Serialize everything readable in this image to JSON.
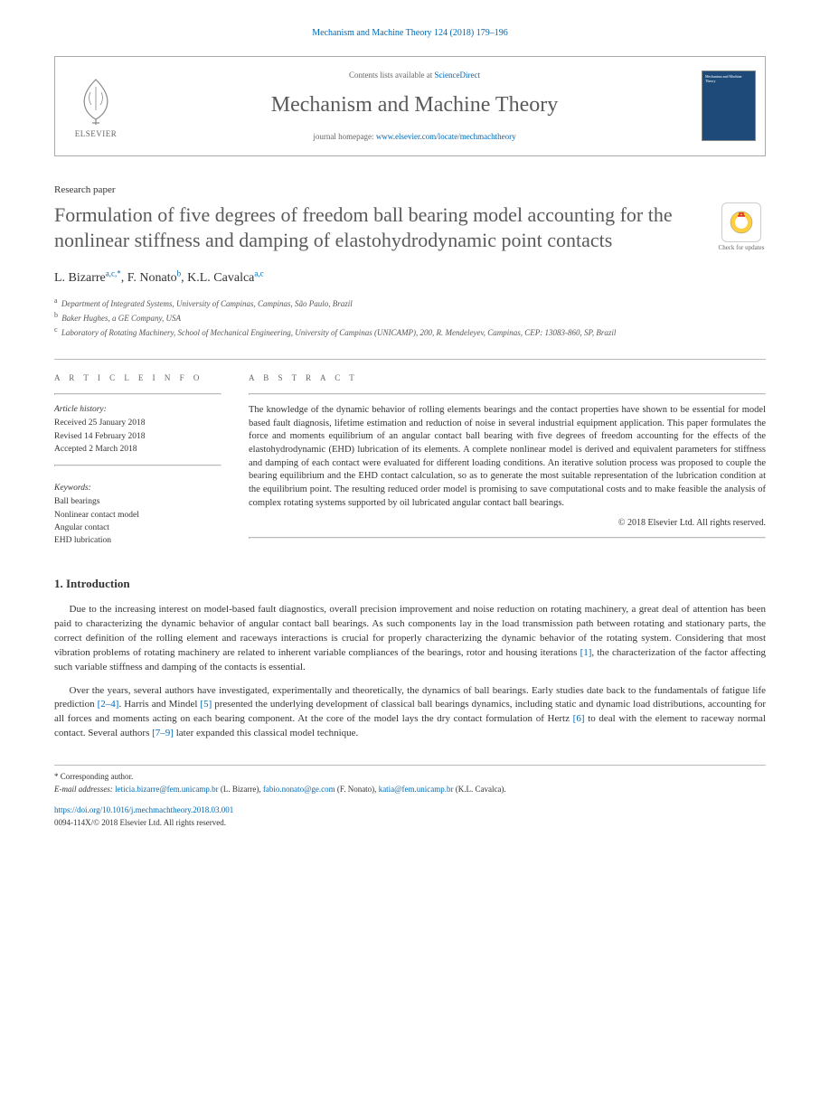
{
  "citation": "Mechanism and Machine Theory 124 (2018) 179–196",
  "header": {
    "contents_prefix": "Contents lists available at ",
    "contents_link": "ScienceDirect",
    "journal_title": "Mechanism and Machine Theory",
    "homepage_prefix": "journal homepage: ",
    "homepage_url": "www.elsevier.com/locate/mechmachtheory",
    "publisher": "ELSEVIER",
    "cover_text": "Mechanism and Machine Theory"
  },
  "article_type": "Research paper",
  "title": "Formulation of five degrees of freedom ball bearing model accounting for the nonlinear stiffness and damping of elastohydrodynamic point contacts",
  "check_updates_label": "Check for updates",
  "authors": [
    {
      "name": "L. Bizarre",
      "affil": "a,c,",
      "corr": "*"
    },
    {
      "name": "F. Nonato",
      "affil": "b"
    },
    {
      "name": "K.L. Cavalca",
      "affil": "a,c"
    }
  ],
  "affiliations": [
    {
      "sup": "a",
      "text": "Department of Integrated Systems, University of Campinas, Campinas, São Paulo, Brazil"
    },
    {
      "sup": "b",
      "text": "Baker Hughes, a GE Company, USA"
    },
    {
      "sup": "c",
      "text": "Laboratory of Rotating Machinery, School of Mechanical Engineering, University of Campinas (UNICAMP), 200, R. Mendeleyev, Campinas, CEP: 13083-860, SP, Brazil"
    }
  ],
  "info": {
    "section_label": "A R T I C L E   I N F O",
    "history_label": "Article history:",
    "history": [
      "Received 25 January 2018",
      "Revised 14 February 2018",
      "Accepted 2 March 2018"
    ],
    "keywords_label": "Keywords:",
    "keywords": [
      "Ball bearings",
      "Nonlinear contact model",
      "Angular contact",
      "EHD lubrication"
    ]
  },
  "abstract": {
    "section_label": "A B S T R A C T",
    "text": "The knowledge of the dynamic behavior of rolling elements bearings and the contact properties have shown to be essential for model based fault diagnosis, lifetime estimation and reduction of noise in several industrial equipment application. This paper formulates the force and moments equilibrium of an angular contact ball bearing with five degrees of freedom accounting for the effects of the elastohydrodynamic (EHD) lubrication of its elements. A complete nonlinear model is derived and equivalent parameters for stiffness and damping of each contact were evaluated for different loading conditions. An iterative solution process was proposed to couple the bearing equilibrium and the EHD contact calculation, so as to generate the most suitable representation of the lubrication condition at the equilibrium point. The resulting reduced order model is promising to save computational costs and to make feasible the analysis of complex rotating systems supported by oil lubricated angular contact ball bearings.",
    "copyright": "© 2018 Elsevier Ltd. All rights reserved."
  },
  "sections": [
    {
      "heading": "1. Introduction",
      "paragraphs": [
        {
          "html": "Due to the increasing interest on model-based fault diagnostics, overall precision improvement and noise reduction on rotating machinery, a great deal of attention has been paid to characterizing the dynamic behavior of angular contact ball bearings. As such components lay in the load transmission path between rotating and stationary parts, the correct definition of the rolling element and raceways interactions is crucial for properly characterizing the dynamic behavior of the rotating system. Considering that most vibration problems of rotating machinery are related to inherent variable compliances of the bearings, rotor and housing iterations <a href='#' data-name='ref-link' data-interactable='true'>[1]</a>, the characterization of the factor affecting such variable stiffness and damping of the contacts is essential."
        },
        {
          "html": "Over the years, several authors have investigated, experimentally and theoretically, the dynamics of ball bearings. Early studies date back to the fundamentals of fatigue life prediction <a href='#' data-name='ref-link' data-interactable='true'>[2–4]</a>. Harris and Mindel <a href='#' data-name='ref-link' data-interactable='true'>[5]</a> presented the underlying development of classical ball bearings dynamics, including static and dynamic load distributions, accounting for all forces and moments acting on each bearing component. At the core of the model lays the dry contact formulation of Hertz <a href='#' data-name='ref-link' data-interactable='true'>[6]</a> to deal with the element to raceway normal contact. Several authors <a href='#' data-name='ref-link' data-interactable='true'>[7–9]</a> later expanded this classical model technique."
        }
      ]
    }
  ],
  "footnotes": {
    "corr_label": "* Corresponding author.",
    "email_label": "E-mail addresses: ",
    "emails": [
      {
        "addr": "leticia.bizarre@fem.unicamp.br",
        "who": " (L. Bizarre), "
      },
      {
        "addr": "fabio.nonato@ge.com",
        "who": " (F. Nonato), "
      },
      {
        "addr": "katia@fem.unicamp.br",
        "who": " (K.L. Cavalca)."
      }
    ]
  },
  "doi": "https://doi.org/10.1016/j.mechmachtheory.2018.03.001",
  "issn_copyright": "0094-114X/© 2018 Elsevier Ltd. All rights reserved.",
  "colors": {
    "link": "#0068b3",
    "heading": "#5a5a5a",
    "elsevier": "#e77817",
    "cover": "#1e4a7a"
  }
}
